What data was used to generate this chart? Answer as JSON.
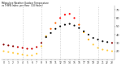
{
  "title": "Milwaukee Weather Outdoor Temperature vs THSW Index per Hour (24 Hours)",
  "hours": [
    0,
    1,
    2,
    3,
    4,
    5,
    6,
    7,
    8,
    9,
    10,
    11,
    12,
    13,
    14,
    15,
    16,
    17,
    18,
    19,
    20,
    21,
    22,
    23
  ],
  "temp": [
    28,
    27,
    26,
    25,
    24,
    23,
    23,
    25,
    30,
    37,
    42,
    47,
    50,
    52,
    53,
    51,
    48,
    44,
    40,
    36,
    34,
    32,
    31,
    30
  ],
  "thsw": [
    20,
    19,
    18,
    17,
    16,
    15,
    15,
    17,
    26,
    38,
    47,
    54,
    60,
    64,
    65,
    60,
    52,
    43,
    34,
    28,
    24,
    22,
    21,
    20
  ],
  "background": "#ffffff",
  "grid_color": "#bbbbbb",
  "ylim": [
    10,
    75
  ],
  "ytick_positions": [
    20,
    30,
    40,
    50,
    60,
    70
  ],
  "ytick_labels": [
    "20",
    "30",
    "40",
    "50",
    "60",
    "70"
  ],
  "vgrid_hours": [
    4,
    8,
    12,
    16,
    20
  ],
  "dot_size": 2.5
}
